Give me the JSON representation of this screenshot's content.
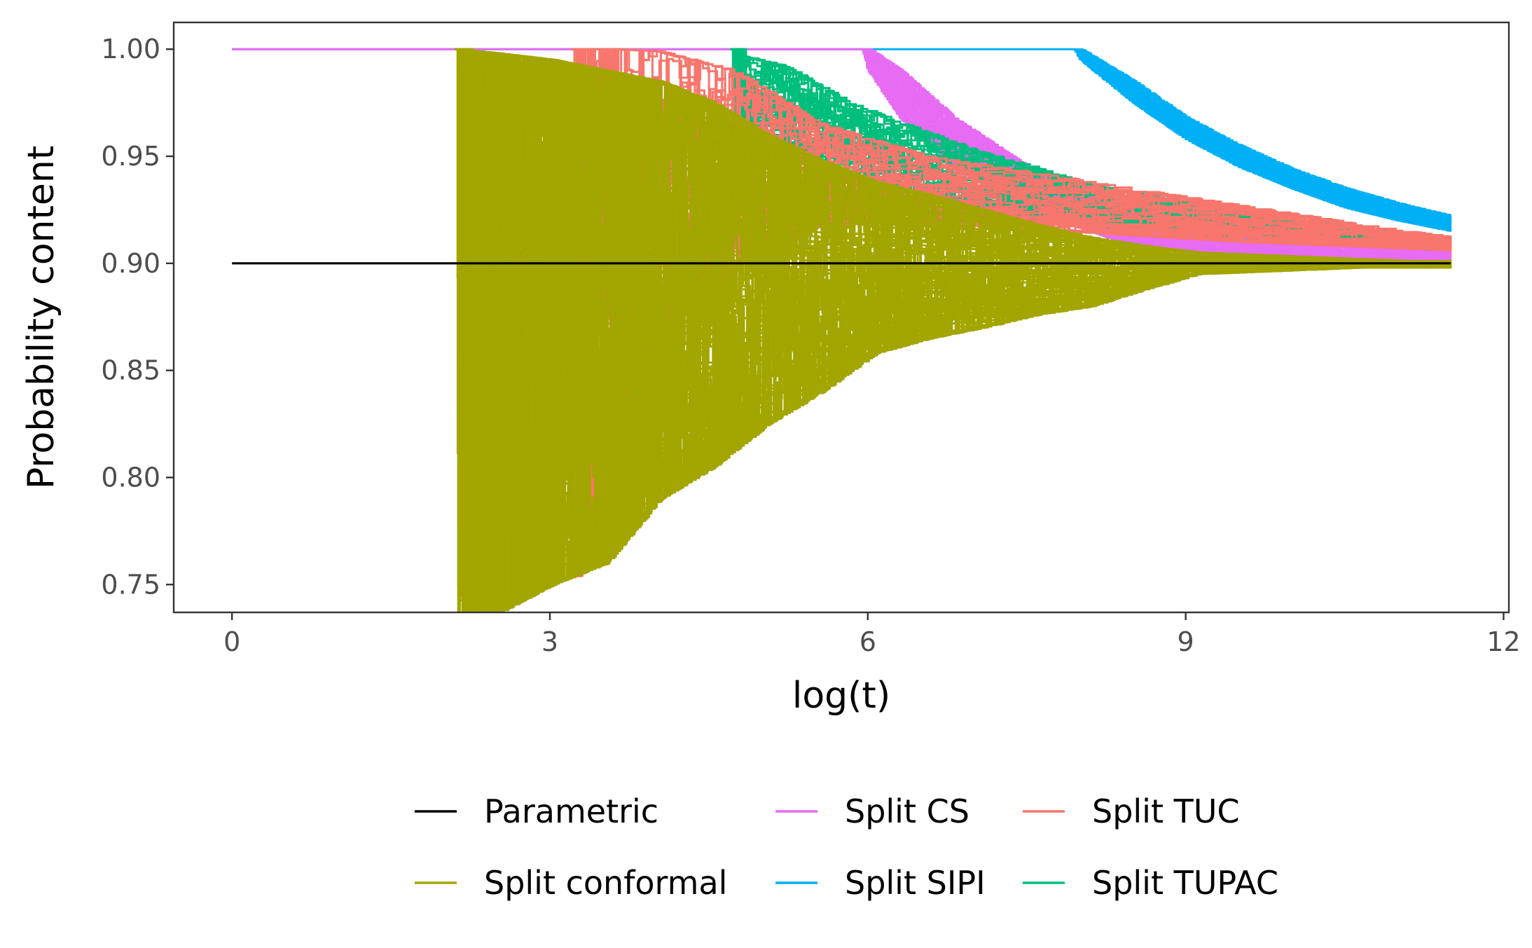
{
  "chart_data": {
    "type": "line",
    "title": "",
    "xlabel": "log(t)",
    "ylabel": "Probability content",
    "xlim": [
      -0.55,
      12.05
    ],
    "ylim": [
      0.737,
      1.0125
    ],
    "x_ticks": [
      0,
      3,
      6,
      9,
      12
    ],
    "x_tick_labels": [
      "0",
      "3",
      "6",
      "9",
      "12"
    ],
    "y_ticks": [
      0.75,
      0.8,
      0.85,
      0.9,
      0.95,
      1.0
    ],
    "y_tick_labels": [
      "0.75",
      "0.80",
      "0.85",
      "0.90",
      "0.95",
      "1.00"
    ],
    "grid": false,
    "legend": {
      "position": "bottom",
      "entries": [
        {
          "name": "Parametric",
          "color": "#000000"
        },
        {
          "name": "Split conformal",
          "color": "#A3A500"
        },
        {
          "name": "Split CS",
          "color": "#E76BF3"
        },
        {
          "name": "Split SIPI",
          "color": "#00B0F6"
        },
        {
          "name": "Split TUC",
          "color": "#F8766D"
        },
        {
          "name": "Split TUPAC",
          "color": "#00BF7D"
        }
      ]
    },
    "series": [
      {
        "name": "Parametric",
        "color": "#000000",
        "x": [
          0,
          11.5
        ],
        "y": [
          0.9,
          0.9
        ]
      },
      {
        "name": "Split CS",
        "color": "#E76BF3",
        "band_x": [
          0.0,
          5.95,
          6.0,
          6.3,
          6.8,
          7.5,
          8.5,
          9.5,
          10.5,
          11.5
        ],
        "band_upper": [
          1.0,
          1.0,
          1.0,
          0.99,
          0.968,
          0.945,
          0.927,
          0.917,
          0.911,
          0.907
        ],
        "band_lower": [
          1.0,
          1.0,
          0.99,
          0.968,
          0.945,
          0.925,
          0.908,
          0.902,
          0.901,
          0.9
        ]
      },
      {
        "name": "Split SIPI",
        "color": "#00B0F6",
        "band_x": [
          0.0,
          7.95,
          8.0,
          8.5,
          9.0,
          9.5,
          10.0,
          10.5,
          11.0,
          11.5
        ],
        "band_upper": [
          1.0,
          1.0,
          1.0,
          0.985,
          0.968,
          0.955,
          0.944,
          0.935,
          0.928,
          0.922
        ],
        "band_lower": [
          1.0,
          1.0,
          0.995,
          0.975,
          0.958,
          0.945,
          0.935,
          0.926,
          0.92,
          0.915
        ]
      },
      {
        "name": "Split TUPAC",
        "color": "#00BF7D",
        "band_x": [
          4.7,
          5.2,
          5.8,
          6.3,
          7.0,
          7.5,
          8.0,
          8.5,
          9.0,
          10.0,
          11.0,
          11.5
        ],
        "band_upper": [
          0.998,
          0.992,
          0.975,
          0.965,
          0.952,
          0.945,
          0.937,
          0.932,
          0.928,
          0.92,
          0.914,
          0.912
        ],
        "band_lower": [
          0.96,
          0.95,
          0.94,
          0.93,
          0.926,
          0.922,
          0.918,
          0.916,
          0.914,
          0.91,
          0.907,
          0.906
        ]
      },
      {
        "name": "Split TUC",
        "color": "#F8766D",
        "band_x": [
          3.2,
          3.6,
          4.0,
          4.7,
          5.5,
          6.5,
          7.5,
          8.5,
          9.5,
          10.5,
          11.5
        ],
        "band_upper": [
          1.0,
          1.0,
          0.999,
          0.99,
          0.965,
          0.95,
          0.942,
          0.934,
          0.926,
          0.918,
          0.911
        ],
        "band_lower": [
          0.75,
          0.78,
          0.86,
          0.9,
          0.918,
          0.919,
          0.916,
          0.913,
          0.91,
          0.908,
          0.906
        ]
      },
      {
        "name": "Split conformal",
        "color": "#A3A500",
        "band_x": [
          2.1,
          2.5,
          3.0,
          3.5,
          4.0,
          4.5,
          5.0,
          5.5,
          6.0,
          6.5,
          7.0,
          7.5,
          8.0,
          8.5,
          9.0,
          9.5,
          10.0,
          10.5,
          11.0,
          11.5
        ],
        "band_upper": [
          1.0,
          0.998,
          0.995,
          0.99,
          0.985,
          0.975,
          0.96,
          0.948,
          0.938,
          0.932,
          0.925,
          0.918,
          0.912,
          0.908,
          0.905,
          0.904,
          0.903,
          0.902,
          0.901,
          0.901
        ],
        "band_lower": [
          0.737,
          0.737,
          0.75,
          0.76,
          0.79,
          0.805,
          0.825,
          0.84,
          0.858,
          0.865,
          0.87,
          0.876,
          0.88,
          0.888,
          0.895,
          0.896,
          0.897,
          0.898,
          0.898,
          0.898
        ]
      }
    ]
  }
}
